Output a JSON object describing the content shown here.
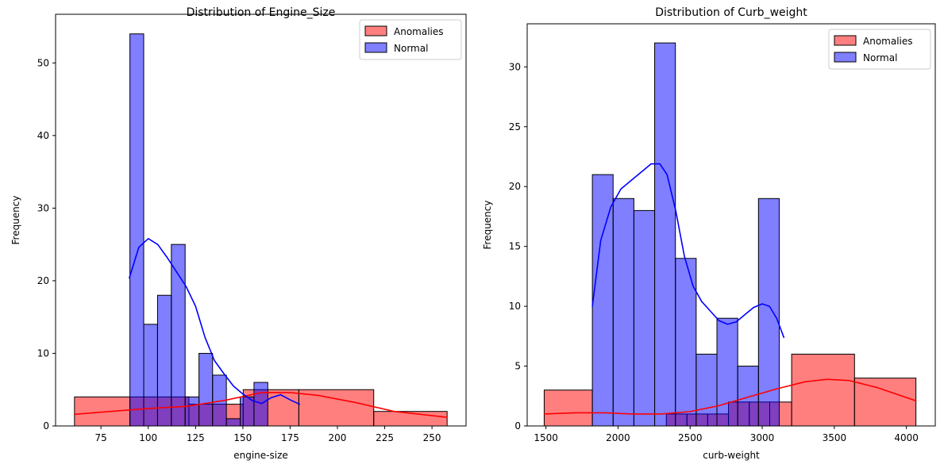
{
  "chart_data": [
    {
      "type": "histogram",
      "title": "Distribution of Engine_Size",
      "xlabel": "engine-size",
      "ylabel": "Frequency",
      "xlim": [
        51,
        268
      ],
      "ylim": [
        0,
        56.7
      ],
      "xticks": [
        75,
        100,
        125,
        150,
        175,
        200,
        225,
        250
      ],
      "yticks": [
        0,
        10,
        20,
        30,
        40,
        50
      ],
      "legend": {
        "placement": "top-right",
        "entries": [
          "Anomalies",
          "Normal"
        ]
      },
      "series": [
        {
          "name": "Anomalies",
          "color": "#ff0000",
          "alpha": 0.5,
          "bin_edges": [
            61,
            90.3,
            121.5,
            150.2,
            179.6,
            219.2,
            258
          ],
          "counts": [
            4,
            4,
            3,
            5,
            5,
            2
          ],
          "kde": {
            "x": [
              61,
              80,
              100,
              120,
              140,
              160,
              175,
              190,
              210,
              230,
              258
            ],
            "y": [
              1.6,
              2.0,
              2.4,
              2.7,
              3.5,
              4.6,
              4.6,
              4.2,
              3.2,
              2.0,
              1.2
            ]
          }
        },
        {
          "name": "Normal",
          "color": "#0000ff",
          "alpha": 0.5,
          "bin_edges": [
            90.3,
            97.6,
            104.9,
            112.2,
            119.5,
            126.8,
            134,
            141.3,
            148.6,
            155.9,
            163.2,
            170.5,
            177.8
          ],
          "counts": [
            54,
            14,
            18,
            25,
            4,
            10,
            7,
            1,
            4,
            6,
            0,
            0
          ],
          "kde": {
            "x": [
              90,
              95,
              100,
              105,
              110,
              115,
              120,
              125,
              130,
              135,
              140,
              145,
              150,
              155,
              160,
              165,
              170,
              175,
              180
            ],
            "y": [
              20.4,
              24.6,
              25.8,
              25.0,
              23.2,
              21.2,
              19.2,
              16.5,
              12.2,
              9.0,
              7.2,
              5.5,
              4.4,
              3.5,
              3.1,
              3.9,
              4.3,
              3.6,
              3.0
            ]
          }
        }
      ]
    },
    {
      "type": "histogram",
      "title": "Distribution of Curb_weight",
      "xlabel": "curb-weight",
      "ylabel": "Frequency",
      "xlim": [
        1370,
        4200
      ],
      "ylim": [
        0,
        33.6
      ],
      "xticks": [
        1500,
        2000,
        2500,
        3000,
        3500,
        4000
      ],
      "yticks": [
        0,
        5,
        10,
        15,
        20,
        25,
        30
      ],
      "legend": {
        "placement": "top-right",
        "entries": [
          "Anomalies",
          "Normal"
        ]
      },
      "series": [
        {
          "name": "Anomalies",
          "color": "#ff0000",
          "alpha": 0.5,
          "bin_edges": [
            1488,
            1822,
            2170,
            2335,
            2478,
            2622,
            2766,
            2910,
            3052,
            3204,
            3640,
            4066
          ],
          "counts": [
            3,
            0,
            0,
            1,
            1,
            1,
            2,
            2,
            2,
            6,
            4
          ],
          "kde": {
            "x": [
              1488,
              1700,
              1900,
              2100,
              2300,
              2500,
              2700,
              2900,
              3100,
              3300,
              3450,
              3600,
              3800,
              4066
            ],
            "y": [
              1.0,
              1.1,
              1.1,
              1.0,
              1.0,
              1.2,
              1.7,
              2.4,
              3.1,
              3.7,
              3.9,
              3.8,
              3.2,
              2.1
            ]
          }
        },
        {
          "name": "Normal",
          "color": "#0000ff",
          "alpha": 0.5,
          "bin_edges": [
            1822,
            1966,
            2110,
            2254,
            2398,
            2542,
            2686,
            2830,
            2974,
            3118
          ],
          "counts": [
            21,
            19,
            18,
            32,
            14,
            6,
            9,
            5,
            19
          ],
          "kde": {
            "x": [
              1822,
              1880,
              1950,
              2020,
              2100,
              2170,
              2230,
              2290,
              2340,
              2400,
              2460,
              2520,
              2580,
              2640,
              2700,
              2760,
              2820,
              2880,
              2940,
              3000,
              3050,
              3100,
              3150
            ],
            "y": [
              10.0,
              15.5,
              18.3,
              19.8,
              20.6,
              21.3,
              21.9,
              21.9,
              21.0,
              18.0,
              14.2,
              11.7,
              10.4,
              9.6,
              8.8,
              8.5,
              8.7,
              9.3,
              9.9,
              10.2,
              10.0,
              9.0,
              7.4
            ]
          }
        }
      ]
    }
  ]
}
